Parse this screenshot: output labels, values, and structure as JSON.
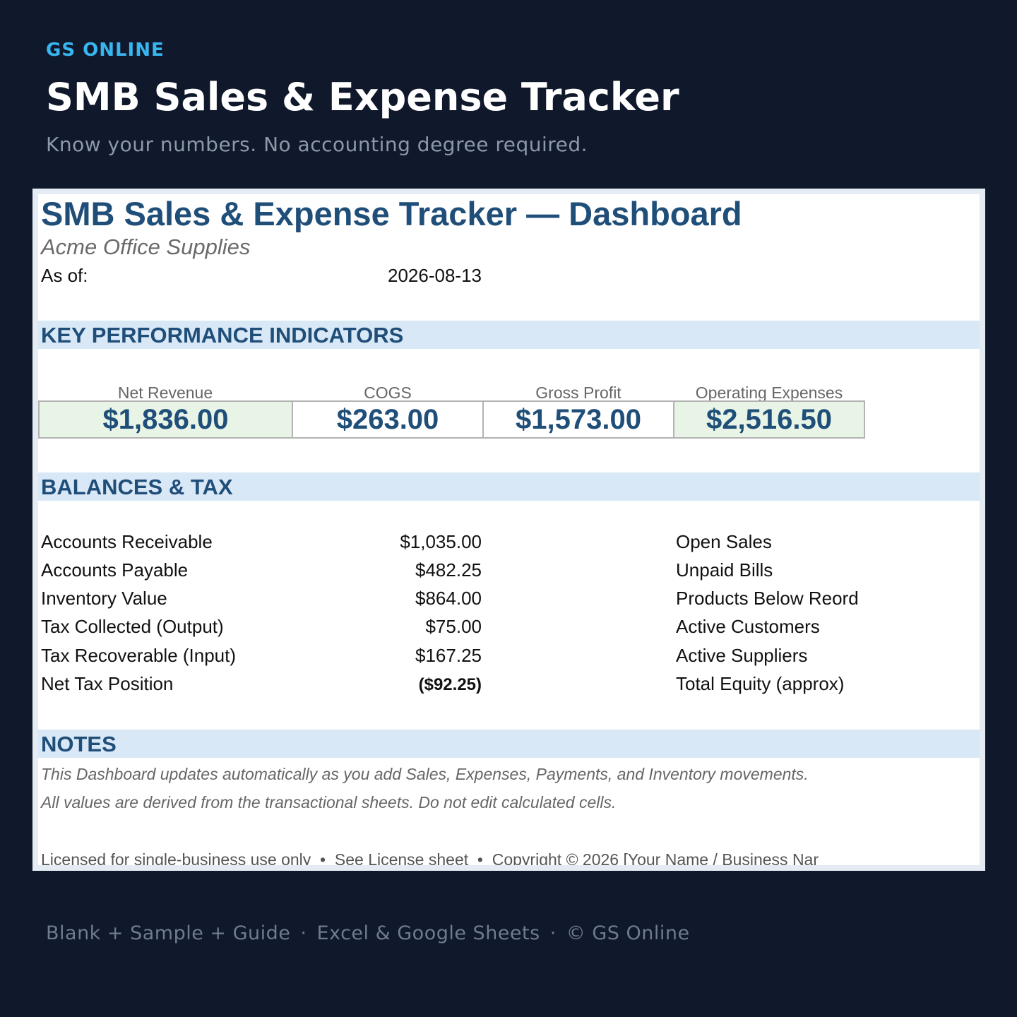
{
  "header": {
    "brand": "GS ONLINE",
    "title": "SMB Sales & Expense Tracker",
    "subtitle": "Know your numbers. No accounting degree required."
  },
  "sheet": {
    "title": "SMB Sales & Expense Tracker — Dashboard",
    "company": "Acme Office Supplies",
    "as_of_label": "As of:",
    "as_of_value": "2026-08-13",
    "kpi_section": "KEY PERFORMANCE INDICATORS",
    "kpis": [
      {
        "label": "Net Revenue",
        "value": "$1,836.00"
      },
      {
        "label": "COGS",
        "value": "$263.00"
      },
      {
        "label": "Gross Profit",
        "value": "$1,573.00"
      },
      {
        "label": "Operating Expenses",
        "value": "$2,516.50"
      }
    ],
    "balances_section": "BALANCES & TAX",
    "balances": [
      {
        "label": "Accounts Receivable",
        "value": "$1,035.00",
        "right": "Open Sales"
      },
      {
        "label": "Accounts Payable",
        "value": "$482.25",
        "right": "Unpaid Bills"
      },
      {
        "label": "Inventory Value",
        "value": "$864.00",
        "right": "Products Below Reord"
      },
      {
        "label": "Tax Collected (Output)",
        "value": "$75.00",
        "right": "Active Customers"
      },
      {
        "label": "Tax Recoverable (Input)",
        "value": "$167.25",
        "right": "Active Suppliers"
      },
      {
        "label": "Net Tax Position",
        "value": "($92.25)",
        "right": "Total Equity (approx)"
      }
    ],
    "notes_section": "NOTES",
    "notes": [
      "This Dashboard updates automatically as you add Sales, Expenses, Payments, and Inventory movements.",
      "All values are derived from the transactional sheets. Do not edit calculated cells."
    ],
    "license": "Licensed for single-business use only  •  See License sheet  •  Copyright © 2026 [Your Name / Business Nar"
  },
  "footer": {
    "item1": "Blank + Sample + Guide",
    "item2": "Excel & Google Sheets",
    "item3": "© GS Online",
    "separator": "·"
  },
  "colors": {
    "background": "#10182b",
    "brand": "#38b6f0",
    "heading_blue": "#1f4e79",
    "section_band": "#d9e8f6",
    "kpi_fill": "#e8f4e6"
  }
}
